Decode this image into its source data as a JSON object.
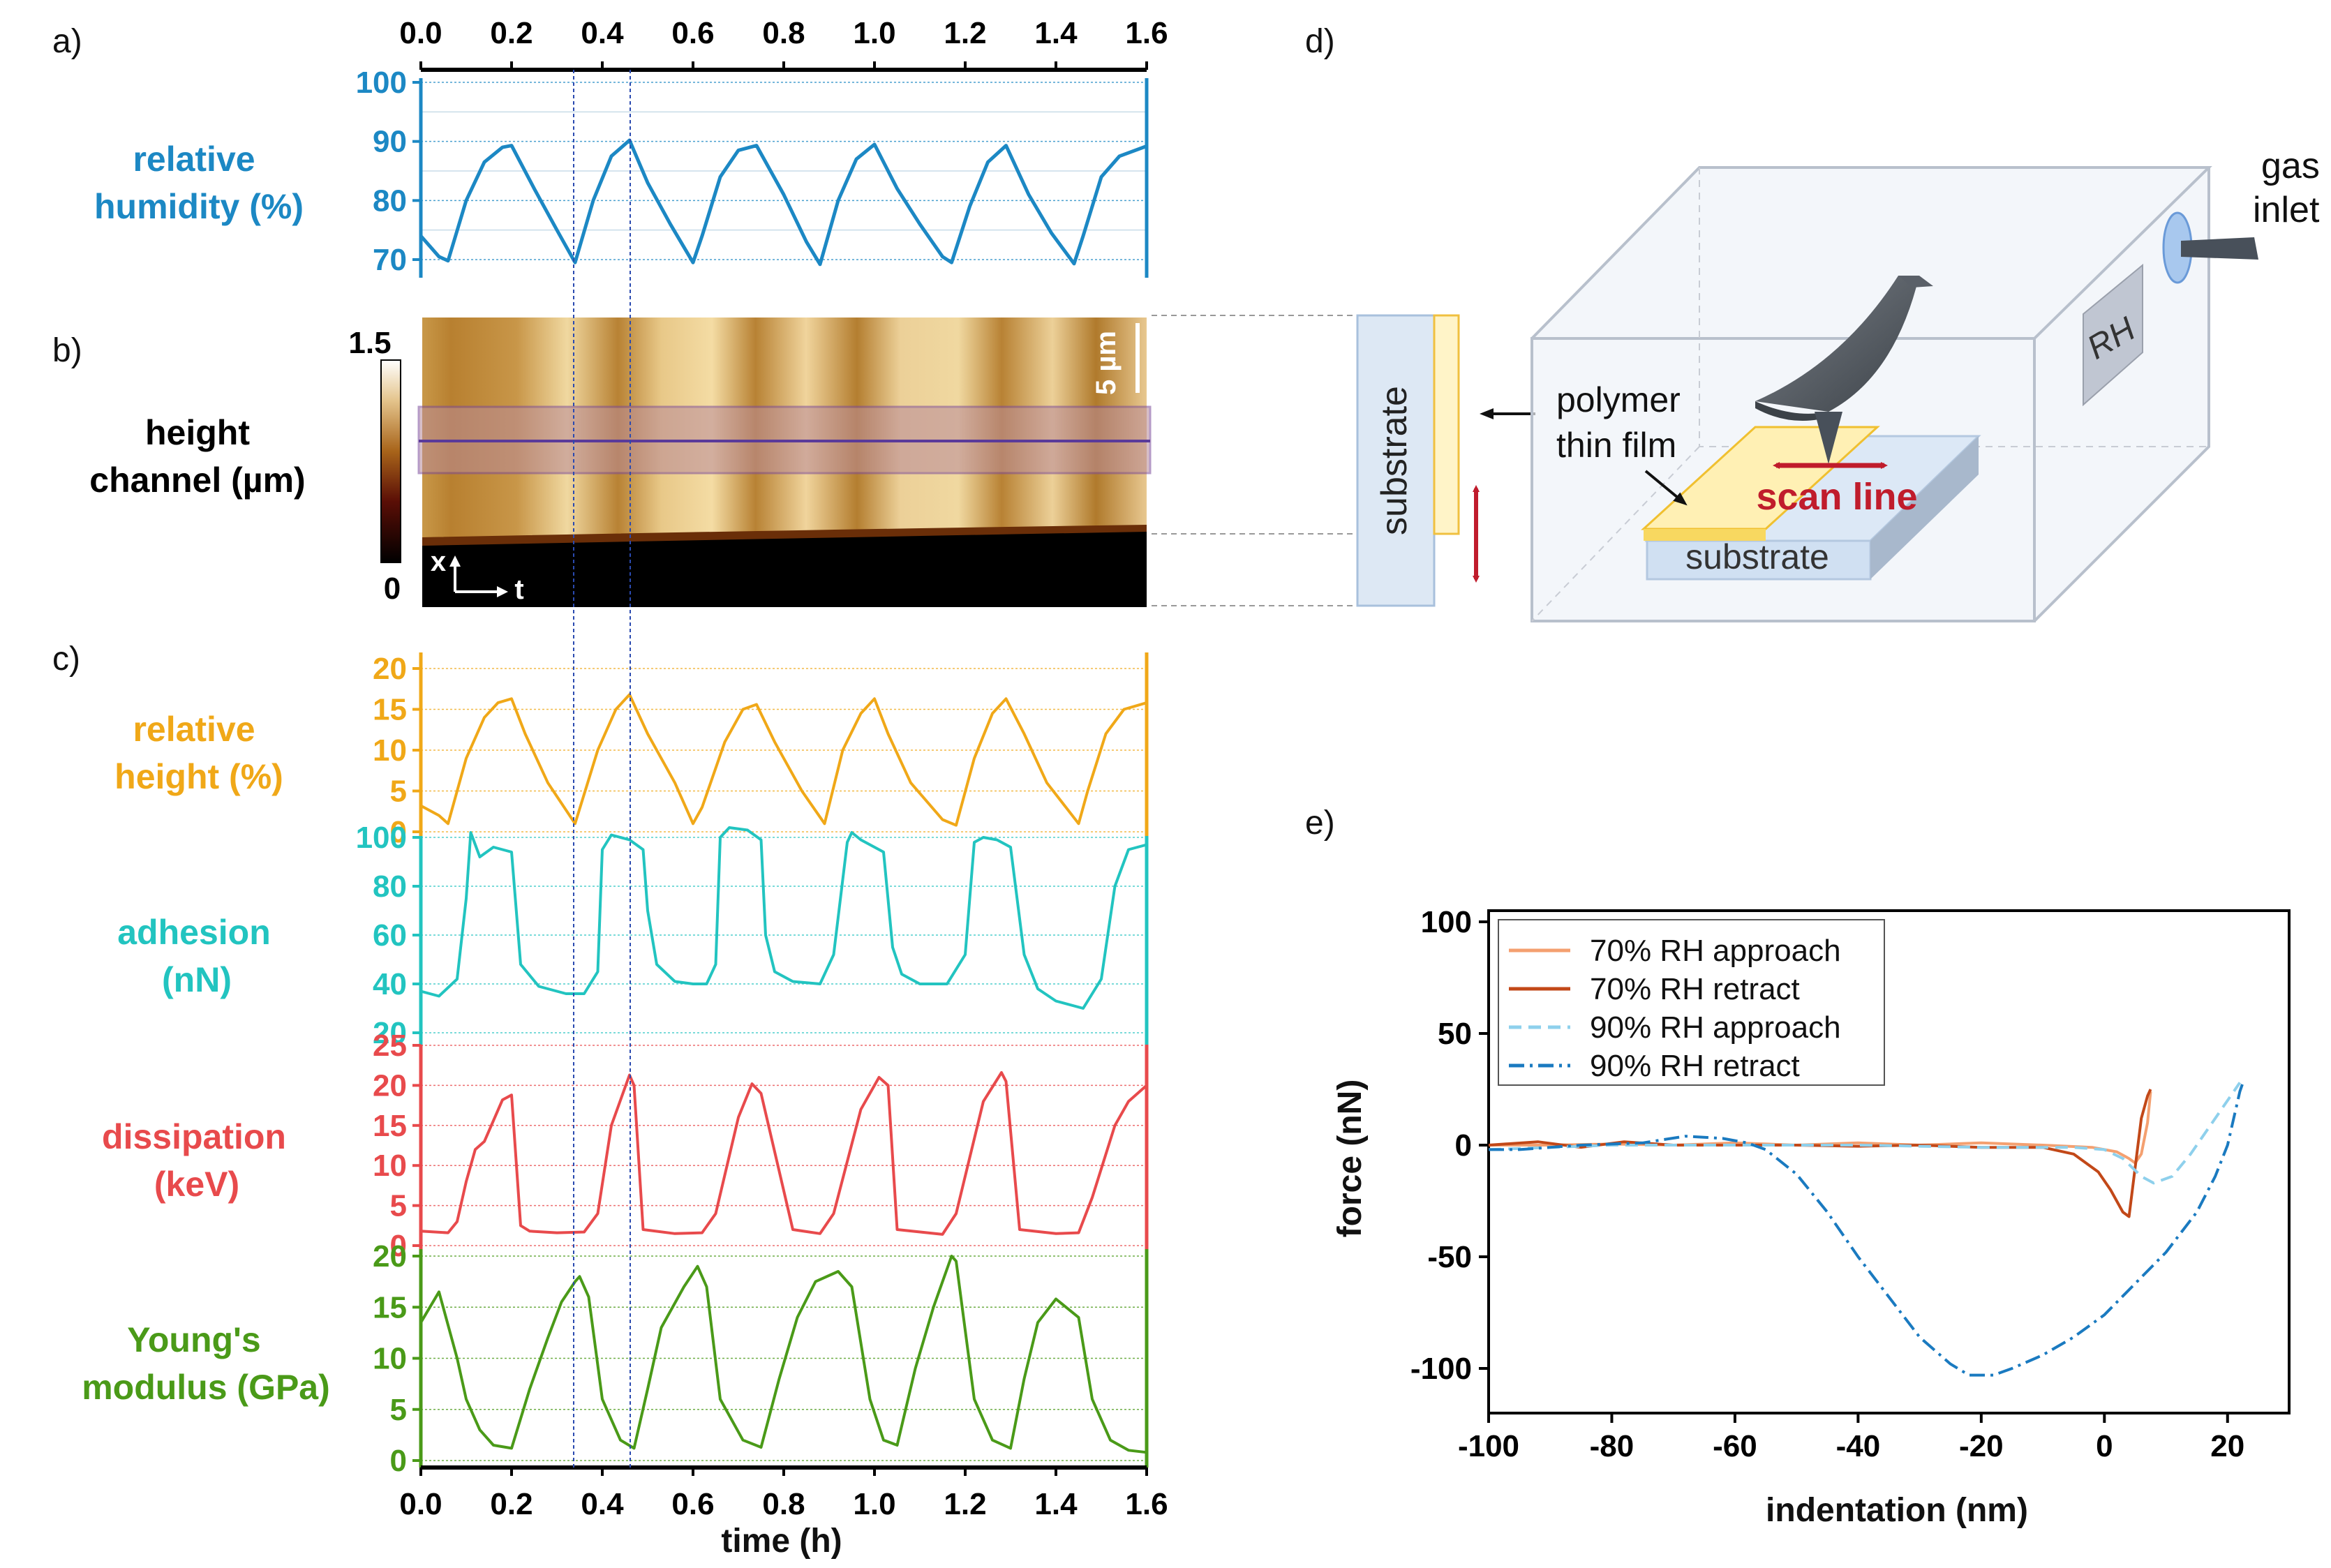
{
  "panels": {
    "a": "a)",
    "b": "b)",
    "c": "c)",
    "d": "d)",
    "e": "e)"
  },
  "colors": {
    "rh": "#1c88c4",
    "height": "#f0a818",
    "adhesion": "#22c4c0",
    "dissipation": "#e84a4c",
    "modulus": "#4a9a18",
    "retract70": "#c24818",
    "approach70": "#f4a070",
    "approach90": "#8ed0ec",
    "retract90": "#1a7ac0",
    "arrow_red": "#c01c2c"
  },
  "time_axis": {
    "label": "time (h)",
    "ticks": [
      "0.0",
      "0.2",
      "0.4",
      "0.6",
      "0.8",
      "1.0",
      "1.2",
      "1.4",
      "1.6"
    ]
  },
  "panel_b": {
    "ylabel": [
      "height",
      "channel (µm)"
    ],
    "colorbar_max": "1.5",
    "colorbar_min": "0",
    "scalebar": "5 µm",
    "axes_x": "x",
    "axes_t": "t"
  },
  "schematic": {
    "gas_inlet": [
      "gas",
      "inlet"
    ],
    "rh_label": "RH",
    "polymer_label": [
      "polymer",
      "thin film"
    ],
    "scan_line": "scan line",
    "substrate": "substrate",
    "side_substrate": "substrate"
  },
  "chart_data": [
    {
      "type": "line",
      "id": "relative-humidity",
      "title": "",
      "ylabel": [
        "relative",
        "humidity (%)"
      ],
      "xlabel": "time (h)",
      "xlim": [
        0,
        1.6
      ],
      "ylim": [
        68,
        100
      ],
      "yticks": [
        70,
        80,
        90,
        100
      ],
      "x": [
        0,
        0.04,
        0.06,
        0.1,
        0.14,
        0.18,
        0.2,
        0.25,
        0.3,
        0.34,
        0.38,
        0.42,
        0.46,
        0.5,
        0.55,
        0.6,
        0.62,
        0.66,
        0.7,
        0.74,
        0.8,
        0.85,
        0.88,
        0.92,
        0.96,
        1.0,
        1.05,
        1.1,
        1.15,
        1.17,
        1.21,
        1.25,
        1.29,
        1.34,
        1.39,
        1.44,
        1.46,
        1.5,
        1.54,
        1.6
      ],
      "series": [
        {
          "name": "relative humidity",
          "values": [
            74,
            70.5,
            69.8,
            80,
            86.5,
            89,
            89.3,
            82,
            75,
            69.5,
            80,
            87.5,
            90.2,
            83,
            76,
            69.5,
            74,
            84,
            88.5,
            89.3,
            81,
            73,
            69.2,
            80,
            87,
            89.5,
            82,
            76,
            70.5,
            69.5,
            79,
            86.5,
            89.3,
            81,
            74.5,
            69.3,
            74,
            84,
            87.5,
            89.2
          ]
        }
      ]
    },
    {
      "type": "line",
      "id": "relative-height",
      "ylabel": [
        "relative",
        "height (%)"
      ],
      "xlim": [
        0,
        1.6
      ],
      "ylim": [
        0,
        22
      ],
      "yticks": [
        0,
        5,
        10,
        15,
        20
      ],
      "x": [
        0,
        0.04,
        0.06,
        0.1,
        0.14,
        0.17,
        0.2,
        0.23,
        0.28,
        0.34,
        0.39,
        0.43,
        0.46,
        0.5,
        0.56,
        0.6,
        0.62,
        0.67,
        0.71,
        0.74,
        0.78,
        0.84,
        0.89,
        0.93,
        0.97,
        1.0,
        1.03,
        1.08,
        1.15,
        1.18,
        1.22,
        1.26,
        1.29,
        1.33,
        1.38,
        1.45,
        1.47,
        1.51,
        1.55,
        1.6
      ],
      "series": [
        {
          "name": "relative height",
          "values": [
            3.2,
            2.0,
            1.0,
            9,
            14,
            15.8,
            16.3,
            12,
            6,
            1.0,
            10,
            15,
            16.8,
            12,
            6,
            1.0,
            3,
            11,
            15,
            15.6,
            11,
            5,
            1.0,
            10,
            14.5,
            16.3,
            12,
            6,
            1.5,
            0.8,
            9,
            14.5,
            16.3,
            12,
            6,
            1.0,
            5,
            12,
            15,
            15.8
          ]
        }
      ]
    },
    {
      "type": "line",
      "id": "adhesion",
      "ylabel": [
        "adhesion",
        "(nN)"
      ],
      "xlim": [
        0,
        1.6
      ],
      "ylim": [
        20,
        105
      ],
      "yticks": [
        20,
        40,
        60,
        80,
        100
      ],
      "x": [
        0,
        0.04,
        0.08,
        0.1,
        0.11,
        0.13,
        0.16,
        0.2,
        0.22,
        0.26,
        0.32,
        0.36,
        0.39,
        0.4,
        0.42,
        0.46,
        0.49,
        0.5,
        0.52,
        0.56,
        0.6,
        0.63,
        0.65,
        0.66,
        0.68,
        0.72,
        0.75,
        0.76,
        0.78,
        0.82,
        0.88,
        0.91,
        0.94,
        0.95,
        0.97,
        1.02,
        1.04,
        1.06,
        1.1,
        1.16,
        1.2,
        1.22,
        1.24,
        1.27,
        1.3,
        1.33,
        1.36,
        1.4,
        1.46,
        1.5,
        1.53,
        1.56,
        1.6
      ],
      "series": [
        {
          "name": "adhesion",
          "values": [
            37,
            35,
            42,
            75,
            102,
            92,
            96,
            94,
            48,
            39,
            36,
            36,
            45,
            95,
            101,
            99,
            95,
            70,
            48,
            41,
            40,
            40,
            48,
            100,
            104,
            103,
            99,
            60,
            45,
            41,
            40,
            52,
            98,
            102,
            99,
            94,
            55,
            44,
            40,
            40,
            52,
            98,
            100,
            99,
            96,
            52,
            38,
            33,
            30,
            42,
            80,
            95,
            97
          ]
        }
      ]
    },
    {
      "type": "line",
      "id": "dissipation",
      "ylabel": [
        "dissipation",
        "(keV)"
      ],
      "xlim": [
        0,
        1.6
      ],
      "ylim": [
        0,
        25
      ],
      "yticks": [
        0,
        5,
        10,
        15,
        20,
        25
      ],
      "x": [
        0,
        0.06,
        0.08,
        0.1,
        0.12,
        0.14,
        0.18,
        0.2,
        0.22,
        0.24,
        0.3,
        0.36,
        0.39,
        0.42,
        0.46,
        0.47,
        0.49,
        0.56,
        0.62,
        0.65,
        0.7,
        0.73,
        0.75,
        0.82,
        0.88,
        0.91,
        0.97,
        1.01,
        1.03,
        1.05,
        1.15,
        1.18,
        1.24,
        1.28,
        1.29,
        1.32,
        1.4,
        1.45,
        1.48,
        1.53,
        1.56,
        1.6
      ],
      "series": [
        {
          "name": "dissipation",
          "values": [
            1.8,
            1.6,
            3,
            8,
            12,
            13,
            18.2,
            18.8,
            2.5,
            1.8,
            1.6,
            1.7,
            4,
            15,
            21.3,
            20,
            2.0,
            1.5,
            1.6,
            4,
            16,
            20.2,
            19,
            2.0,
            1.5,
            4,
            17,
            21,
            20,
            2.0,
            1.4,
            4,
            18,
            21.6,
            20.5,
            2.0,
            1.5,
            1.6,
            6,
            15,
            18,
            20
          ]
        }
      ]
    },
    {
      "type": "line",
      "id": "youngs-modulus",
      "ylabel": [
        "Young's",
        "modulus (GPa)"
      ],
      "xlabel": "time (h)",
      "xlim": [
        0,
        1.6
      ],
      "ylim": [
        0,
        22
      ],
      "yticks": [
        0,
        5,
        10,
        15,
        20
      ],
      "x": [
        0,
        0.04,
        0.08,
        0.1,
        0.13,
        0.16,
        0.2,
        0.24,
        0.28,
        0.31,
        0.34,
        0.35,
        0.37,
        0.4,
        0.44,
        0.47,
        0.5,
        0.53,
        0.58,
        0.61,
        0.63,
        0.66,
        0.71,
        0.75,
        0.79,
        0.83,
        0.87,
        0.92,
        0.95,
        0.99,
        1.02,
        1.05,
        1.09,
        1.13,
        1.17,
        1.18,
        1.22,
        1.26,
        1.3,
        1.33,
        1.36,
        1.4,
        1.45,
        1.48,
        1.52,
        1.56,
        1.6
      ],
      "series": [
        {
          "name": "Young's modulus",
          "values": [
            13.5,
            16.5,
            10,
            6,
            3,
            1.5,
            1.2,
            7,
            12,
            15.5,
            17.5,
            18,
            16,
            6,
            2,
            1.2,
            7,
            13,
            17,
            19,
            17,
            6,
            2,
            1.3,
            8,
            14,
            17.5,
            18.5,
            17,
            6,
            2,
            1.5,
            9,
            15,
            20,
            19.5,
            6,
            2,
            1.2,
            8,
            13.5,
            15.8,
            14,
            6,
            2,
            1.0,
            0.8
          ]
        }
      ]
    },
    {
      "type": "line",
      "id": "force-curves",
      "title": "",
      "xlabel": "indentation (nm)",
      "ylabel": "force (nN)",
      "xlim": [
        -100,
        30
      ],
      "ylim": [
        -120,
        105
      ],
      "xticks": [
        -100,
        -80,
        -60,
        -40,
        -20,
        0,
        20
      ],
      "yticks": [
        -100,
        -50,
        0,
        50,
        100
      ],
      "legend_position": "top-left",
      "series": [
        {
          "name": "70% RH approach",
          "style": "solid",
          "x": [
            -100,
            -90,
            -80,
            -70,
            -60,
            -50,
            -40,
            -30,
            -20,
            -10,
            -2,
            2,
            4,
            5,
            6,
            7,
            7.5
          ],
          "values": [
            0,
            0,
            0.5,
            0,
            1,
            0,
            1,
            0,
            1,
            0,
            -1,
            -3,
            -6,
            -8,
            -4,
            10,
            24
          ]
        },
        {
          "name": "70% RH retract",
          "style": "solid",
          "x": [
            -100,
            -92,
            -85,
            -78,
            -70,
            -60,
            -50,
            -40,
            -30,
            -20,
            -10,
            -5,
            -1,
            1,
            3,
            4,
            5,
            6,
            7,
            7.5
          ],
          "values": [
            0,
            1.5,
            -1,
            1.5,
            0,
            0,
            0,
            -0.5,
            0,
            -1,
            -1,
            -4,
            -12,
            -20,
            -30,
            -32,
            -10,
            12,
            22,
            25
          ]
        },
        {
          "name": "90% RH approach",
          "style": "dashed",
          "x": [
            -100,
            -80,
            -60,
            -40,
            -20,
            -5,
            0,
            3,
            6,
            8,
            11,
            14,
            17,
            20,
            22
          ],
          "values": [
            -2,
            0,
            0,
            0,
            -1,
            -1,
            -2,
            -6,
            -14,
            -17,
            -14,
            -4,
            8,
            20,
            28
          ]
        },
        {
          "name": "90% RH retract",
          "style": "dashdot",
          "x": [
            -100,
            -95,
            -85,
            -75,
            -68,
            -62,
            -58,
            -55,
            -50,
            -45,
            -40,
            -35,
            -30,
            -25,
            -22,
            -18,
            -15,
            -10,
            -5,
            0,
            5,
            10,
            15,
            18,
            20,
            21,
            22,
            22.5
          ],
          "values": [
            -2,
            -2,
            0,
            1,
            4,
            3,
            1,
            -2,
            -13,
            -30,
            -50,
            -68,
            -86,
            -98,
            -103,
            -103,
            -100,
            -94,
            -86,
            -76,
            -62,
            -48,
            -30,
            -14,
            0,
            12,
            24,
            28
          ]
        }
      ]
    }
  ]
}
